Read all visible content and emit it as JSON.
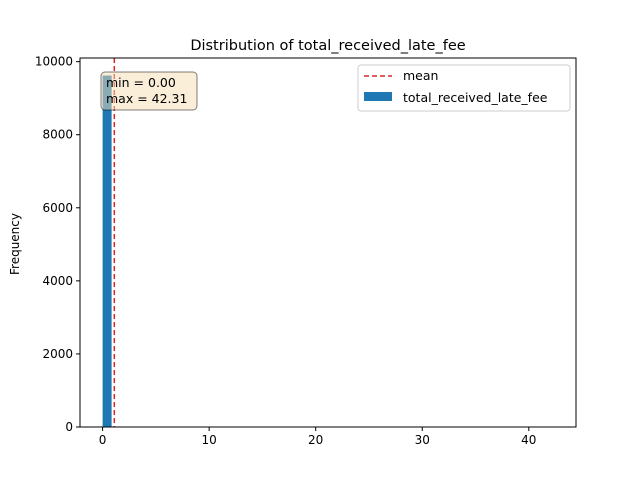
{
  "chart_data": {
    "type": "bar",
    "title": "Distribution of total_received_late_fee",
    "xlabel": "",
    "ylabel": "Frequency",
    "xlim": [
      -2.12,
      44.43
    ],
    "ylim": [
      0,
      10100
    ],
    "xticks": [
      0,
      10,
      20,
      30,
      40
    ],
    "yticks": [
      0,
      2000,
      4000,
      6000,
      8000,
      10000
    ],
    "grid": false,
    "bin_width": 0.846,
    "series": [
      {
        "name": "total_received_late_fee",
        "color": "#1f77b4",
        "bins": [
          {
            "x0": 0.0,
            "count": 9620
          },
          {
            "x0": 23.69,
            "count": 12
          },
          {
            "x0": 27.08,
            "count": 10
          }
        ]
      }
    ],
    "mean_line": {
      "label": "mean",
      "value": 1.1,
      "color": "#d62728"
    },
    "stats_box": {
      "min_text": "min$=0.00$",
      "max_text": "max$=42.31$",
      "min_display": "min = 0.00",
      "max_display": "max = 42.31"
    },
    "legend_position": "upper right"
  }
}
